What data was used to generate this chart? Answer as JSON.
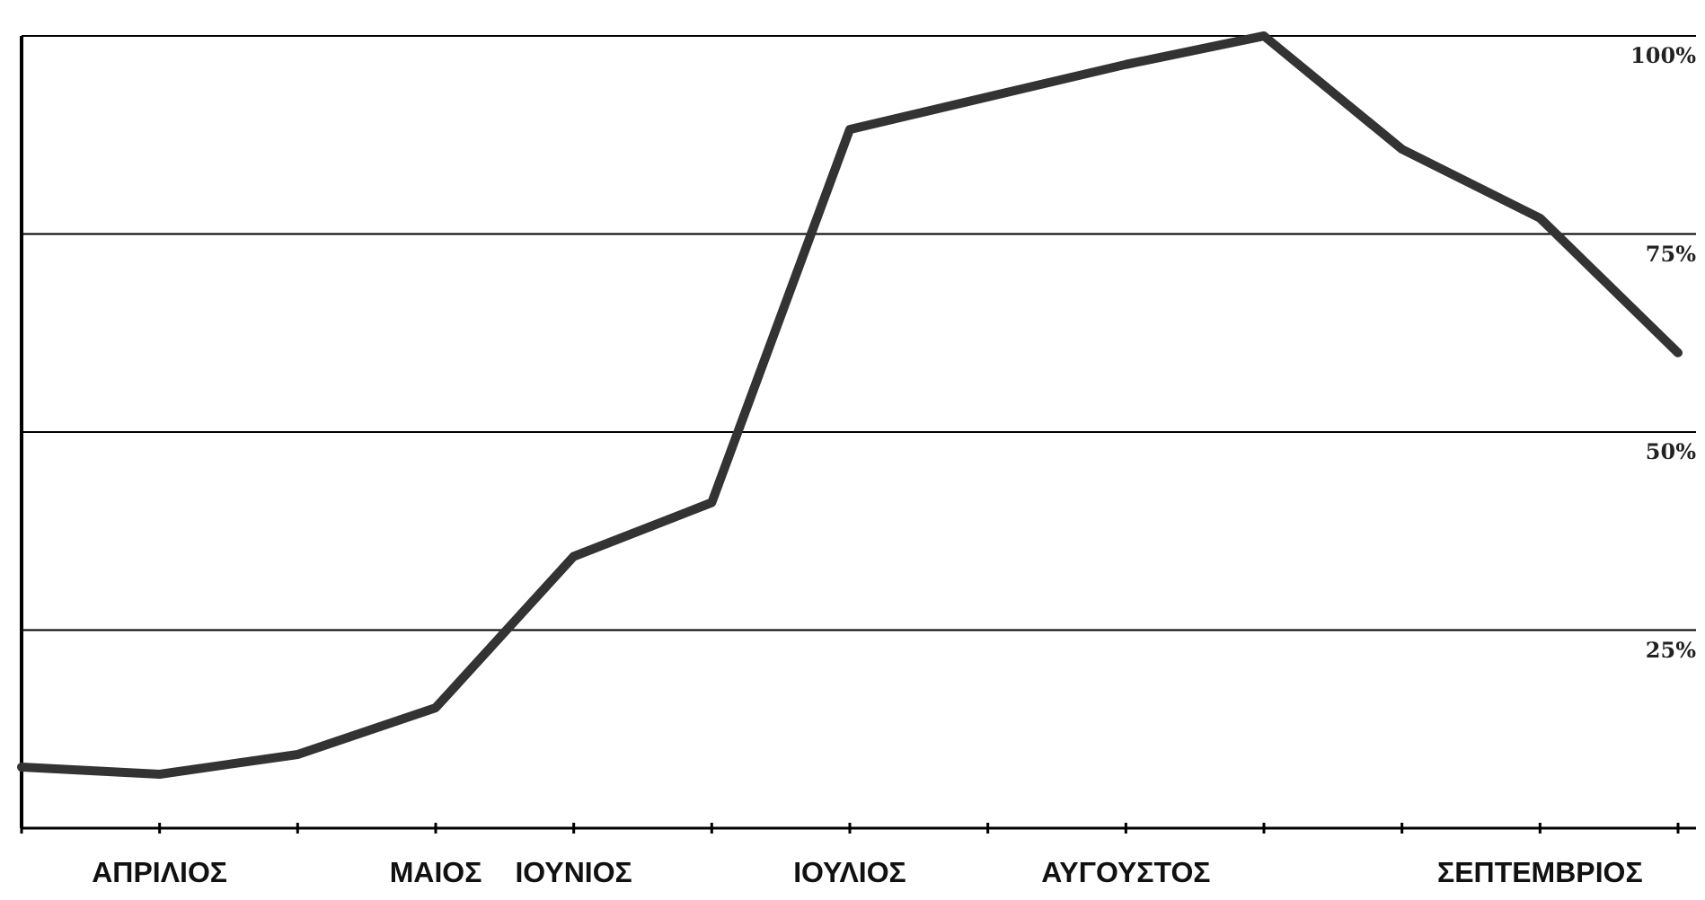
{
  "chart_data": {
    "type": "line",
    "categories": [
      null,
      "ΑΠΡΙΛΙΟΣ",
      null,
      "ΜΑΙΟΣ",
      "ΙΟΥΝΙΟΣ",
      null,
      "ΙΟΥΛΙΟΣ",
      null,
      "ΑΥΓΟΥΣΤΟΣ",
      null,
      null,
      "ΣΕΠΤΕΜΒΡΙΟΣ",
      null
    ],
    "series": [
      {
        "color": "#333333",
        "values": [
          7.7,
          6.8,
          9.3,
          15.2,
          34.3,
          41.1,
          88.2,
          92.3,
          96.4,
          100,
          85.7,
          77,
          60
        ]
      }
    ],
    "ylim": [
      0,
      100
    ],
    "yticks": [
      {
        "value": 25,
        "label": "25%"
      },
      {
        "value": 50,
        "label": "50%"
      },
      {
        "value": 75,
        "label": "75%"
      },
      {
        "value": 100,
        "label": "100%"
      }
    ],
    "grid": "y",
    "marker": "none",
    "line_style": "solid"
  }
}
